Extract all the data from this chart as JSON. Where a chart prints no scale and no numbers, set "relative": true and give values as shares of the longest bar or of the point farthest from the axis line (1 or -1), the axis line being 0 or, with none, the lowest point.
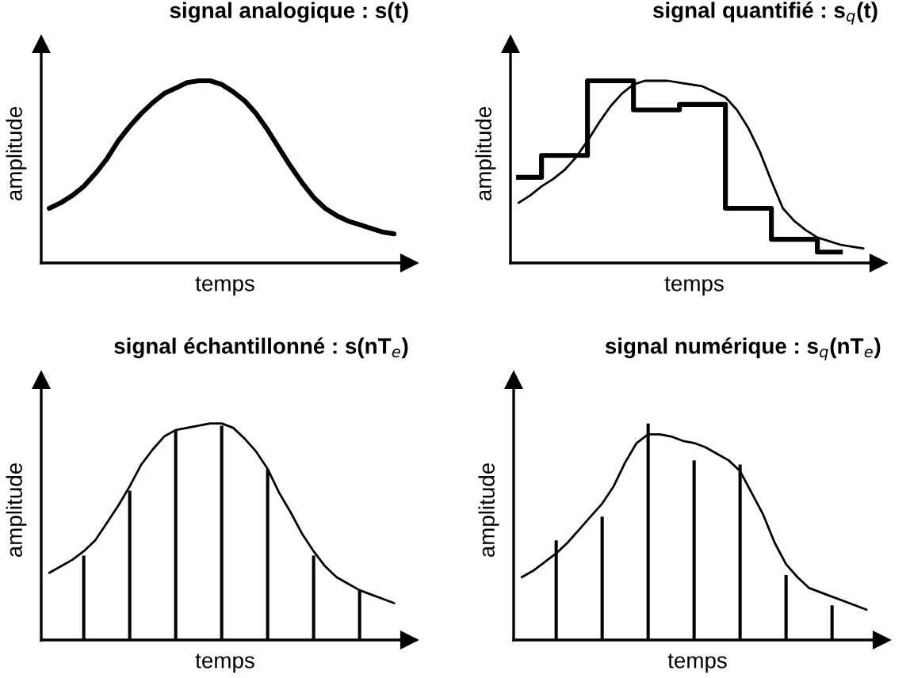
{
  "chart_data": [
    {
      "type": "line",
      "title": "signal analogique : s(t)",
      "xlabel": "temps",
      "ylabel": "amplitude",
      "relative": true,
      "categories": [
        null,
        null,
        null,
        null,
        null,
        null,
        null,
        null,
        null,
        null,
        null,
        null,
        null,
        null,
        null,
        null,
        null,
        null,
        null,
        null,
        null,
        null,
        null,
        null,
        null,
        null,
        null,
        null,
        null,
        null,
        null
      ],
      "series": [
        {
          "color": "#000000",
          "values": [
            0.3,
            0.33,
            0.37,
            0.42,
            0.49,
            0.57,
            0.67,
            0.75,
            0.82,
            0.88,
            0.93,
            0.96,
            0.99,
            1.0,
            1.0,
            0.98,
            0.94,
            0.89,
            0.82,
            0.73,
            0.63,
            0.53,
            0.44,
            0.36,
            0.3,
            0.26,
            0.23,
            0.21,
            0.19,
            0.17,
            0.16
          ]
        }
      ]
    },
    {
      "type": "line",
      "title": "signal quantifié : s$_{q}$(t)",
      "xlabel": "temps",
      "ylabel": "amplitude",
      "relative": true,
      "categories": [
        null,
        null,
        null,
        null,
        null,
        null,
        null,
        null,
        null,
        null,
        null,
        null,
        null,
        null,
        null,
        null,
        null,
        null,
        null,
        null,
        null,
        null,
        null,
        null,
        null,
        null,
        null,
        null,
        null,
        null,
        null
      ],
      "series": [
        {
          "color": "#000000",
          "values": [
            0.33,
            0.37,
            0.42,
            0.46,
            0.51,
            0.58,
            0.67,
            0.77,
            0.86,
            0.93,
            0.98,
            1.0,
            1.0,
            1.0,
            0.99,
            0.98,
            0.97,
            0.94,
            0.91,
            0.84,
            0.74,
            0.61,
            0.45,
            0.3,
            0.23,
            0.18,
            0.14,
            0.12,
            0.1,
            0.09,
            0.08
          ]
        },
        {
          "type": "step",
          "color": "#000000",
          "values": [
            0.47,
            0.47,
            0.59,
            0.59,
            0.59,
            0.59,
            1.0,
            1.0,
            1.0,
            1.0,
            0.84,
            0.84,
            0.84,
            0.84,
            0.87,
            0.87,
            0.87,
            0.87,
            0.3,
            0.3,
            0.3,
            0.3,
            0.13,
            0.13,
            0.13,
            0.13,
            0.06,
            0.06,
            0.06,
            null,
            null
          ]
        }
      ]
    },
    {
      "type": "line",
      "title": "signal échantillonné : s(nT$_{e}$)",
      "xlabel": "temps",
      "ylabel": "amplitude",
      "relative": true,
      "categories": [
        null,
        null,
        null,
        null,
        null,
        null,
        null,
        null,
        null,
        null,
        null,
        null,
        null,
        null,
        null,
        null,
        null,
        null,
        null,
        null,
        null,
        null,
        null,
        null,
        null,
        null,
        null,
        null,
        null,
        null,
        null
      ],
      "series": [
        {
          "color": "#000000",
          "values": [
            0.31,
            0.34,
            0.37,
            0.41,
            0.46,
            0.54,
            0.62,
            0.71,
            0.81,
            0.88,
            0.94,
            0.97,
            0.98,
            0.99,
            1.0,
            1.0,
            0.98,
            0.93,
            0.87,
            0.79,
            0.68,
            0.59,
            0.49,
            0.41,
            0.34,
            0.29,
            0.26,
            0.23,
            0.21,
            0.19,
            0.17
          ]
        },
        {
          "type": "bar",
          "color": "#000000",
          "values": [
            null,
            null,
            null,
            0.39,
            null,
            null,
            null,
            0.69,
            null,
            null,
            null,
            0.97,
            null,
            null,
            null,
            0.99,
            null,
            null,
            null,
            0.79,
            null,
            null,
            null,
            0.39,
            null,
            null,
            null,
            0.23,
            null,
            null,
            null
          ]
        }
      ]
    },
    {
      "type": "line",
      "title": "signal numérique : s$_{q}$(nT$_{e}$)",
      "xlabel": "temps",
      "ylabel": "amplitude",
      "relative": true,
      "categories": [
        null,
        null,
        null,
        null,
        null,
        null,
        null,
        null,
        null,
        null,
        null,
        null,
        null,
        null,
        null,
        null,
        null,
        null,
        null,
        null,
        null,
        null,
        null,
        null,
        null,
        null,
        null,
        null,
        null,
        null,
        null
      ],
      "series": [
        {
          "color": "#000000",
          "values": [
            0.29,
            0.32,
            0.36,
            0.4,
            0.45,
            0.51,
            0.57,
            0.63,
            0.71,
            0.82,
            0.91,
            0.95,
            0.95,
            0.94,
            0.92,
            0.91,
            0.89,
            0.86,
            0.83,
            0.78,
            0.68,
            0.58,
            0.45,
            0.35,
            0.29,
            0.24,
            0.22,
            0.2,
            0.18,
            0.16,
            0.14
          ]
        },
        {
          "type": "bar",
          "color": "#000000",
          "values": [
            null,
            null,
            null,
            0.46,
            null,
            null,
            null,
            0.57,
            null,
            null,
            null,
            1.0,
            null,
            null,
            null,
            0.83,
            null,
            null,
            null,
            0.81,
            null,
            null,
            null,
            0.3,
            null,
            null,
            null,
            0.16,
            null,
            null,
            null
          ]
        }
      ]
    }
  ]
}
